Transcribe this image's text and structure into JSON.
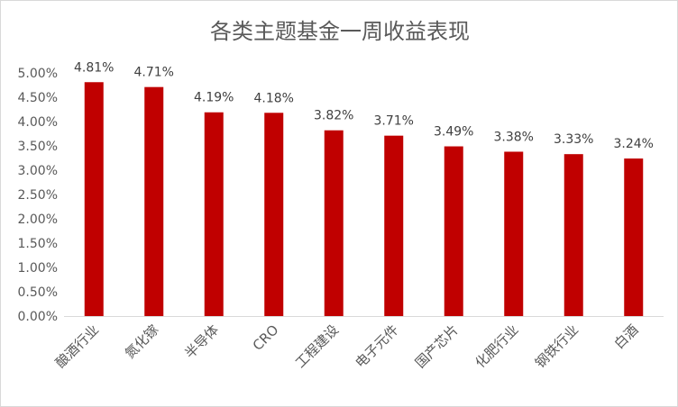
{
  "chart_data": {
    "type": "bar",
    "title": "各类主题基金一周收益表现",
    "categories": [
      "酿酒行业",
      "氮化镓",
      "半导体",
      "CRO",
      "工程建设",
      "电子元件",
      "国产芯片",
      "化肥行业",
      "钢铁行业",
      "白酒"
    ],
    "values": [
      4.81,
      4.71,
      4.19,
      4.18,
      3.82,
      3.71,
      3.49,
      3.38,
      3.33,
      3.24
    ],
    "value_labels": [
      "4.81%",
      "4.71%",
      "4.19%",
      "4.18%",
      "3.82%",
      "3.71%",
      "3.49%",
      "3.38%",
      "3.33%",
      "3.24%"
    ],
    "y_ticks": [
      "0.00%",
      "0.50%",
      "1.00%",
      "1.50%",
      "2.00%",
      "2.50%",
      "3.00%",
      "3.50%",
      "4.00%",
      "4.50%",
      "5.00%"
    ],
    "ylim": [
      0,
      5
    ],
    "ytick_step": 0.5,
    "xlabel": "",
    "ylabel": "",
    "grid": false,
    "legend": "none",
    "bar_color": "#c00000"
  }
}
